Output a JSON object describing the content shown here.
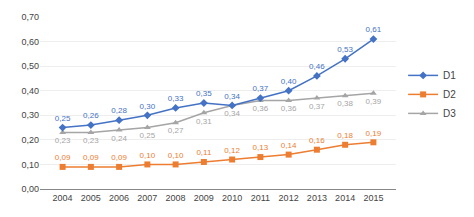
{
  "chart_data": {
    "type": "line",
    "x": [
      2004,
      2005,
      2006,
      2007,
      2008,
      2009,
      2010,
      2011,
      2012,
      2013,
      2014,
      2015
    ],
    "series": [
      {
        "name": "D3",
        "color": "#A5A5A5",
        "marker": "triangle",
        "values": [
          0.23,
          0.23,
          0.24,
          0.25,
          0.27,
          0.31,
          0.34,
          0.36,
          0.36,
          0.37,
          0.38,
          0.39
        ],
        "value_labels": [
          "0,23",
          "0,23",
          "0,24",
          "0,25",
          "0,27",
          "0,31",
          "0,34",
          "0,36",
          "0,36",
          "0,37",
          "0,38",
          "0,39"
        ]
      },
      {
        "name": "D2",
        "color": "#ED7D31",
        "marker": "square",
        "values": [
          0.09,
          0.09,
          0.09,
          0.1,
          0.1,
          0.11,
          0.12,
          0.13,
          0.14,
          0.16,
          0.18,
          0.19
        ],
        "value_labels": [
          "0,09",
          "0,09",
          "0,09",
          "0,10",
          "0,10",
          "0,11",
          "0,12",
          "0,13",
          "0,14",
          "0,16",
          "0,18",
          "0,19"
        ]
      },
      {
        "name": "D1",
        "color": "#4472C4",
        "marker": "diamond",
        "values": [
          0.25,
          0.26,
          0.28,
          0.3,
          0.33,
          0.35,
          0.34,
          0.37,
          0.4,
          0.46,
          0.53,
          0.61
        ],
        "value_labels": [
          "0,25",
          "0,26",
          "0,28",
          "0,30",
          "0,33",
          "0,35",
          "0,34",
          "0,37",
          "0,40",
          "0,46",
          "0,53",
          "0,61"
        ]
      }
    ],
    "xlim": [
      2003.2,
      2015.8
    ],
    "xticks": [
      2004,
      2005,
      2006,
      2007,
      2008,
      2009,
      2010,
      2011,
      2012,
      2013,
      2014,
      2015
    ],
    "ylim": [
      0.0,
      0.7
    ],
    "yticks": [
      {
        "value": 0.0,
        "label": "0,00"
      },
      {
        "value": 0.1,
        "label": "0,10"
      },
      {
        "value": 0.2,
        "label": "0,20"
      },
      {
        "value": 0.3,
        "label": "0,30"
      },
      {
        "value": 0.4,
        "label": "0,40"
      },
      {
        "value": 0.5,
        "label": "0,50"
      },
      {
        "value": 0.6,
        "label": "0,60"
      },
      {
        "value": 0.7,
        "label": "0,70"
      }
    ],
    "grid": true,
    "legend": "right",
    "data_labels": true
  }
}
